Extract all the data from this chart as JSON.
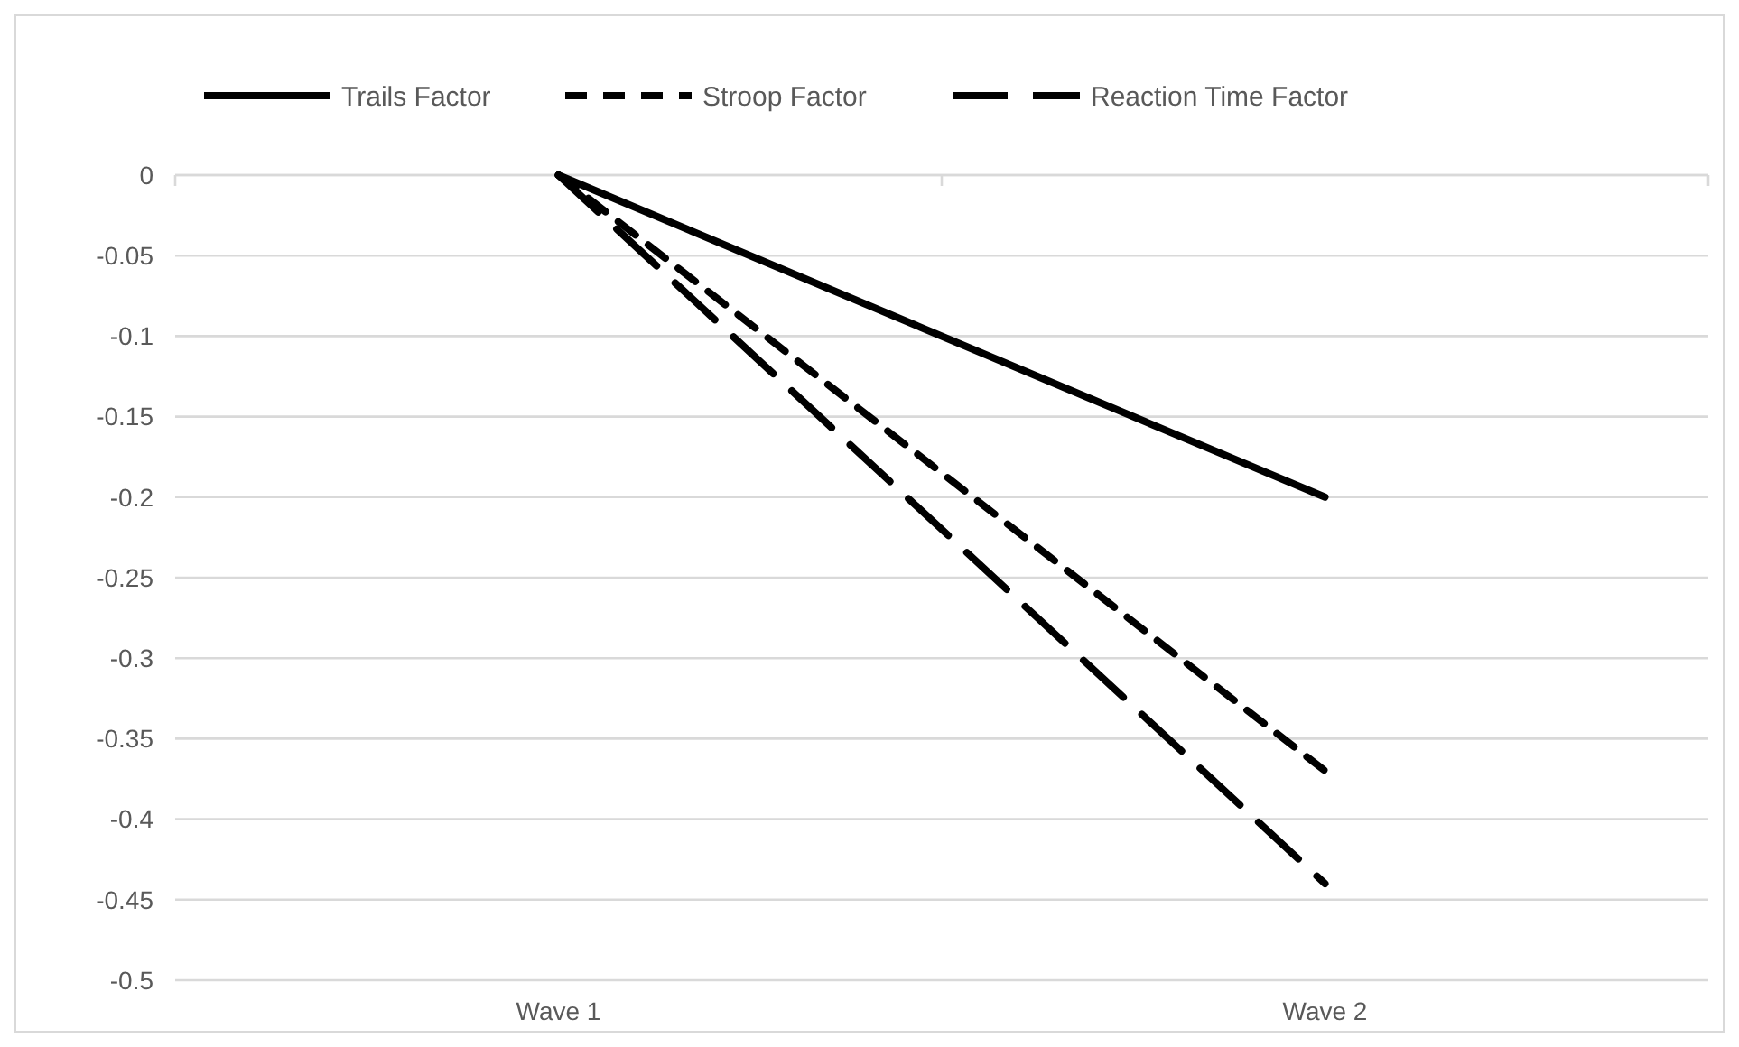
{
  "chart_data": {
    "type": "line",
    "categories": [
      "Wave 1",
      "Wave 2"
    ],
    "series": [
      {
        "name": "Trails Factor",
        "color": "#000000",
        "values": [
          0,
          -0.2
        ],
        "line_style": "solid"
      },
      {
        "name": "Stroop Factor",
        "color": "#000000",
        "values": [
          0,
          -0.37
        ],
        "line_style": "dashed"
      },
      {
        "name": "Reaction Time Factor",
        "color": "#000000",
        "values": [
          0,
          -0.44
        ],
        "line_style": "longdash"
      }
    ],
    "ylim": [
      -0.5,
      0
    ],
    "yticks": [
      0,
      -0.05,
      -0.1,
      -0.15,
      -0.2,
      -0.25,
      -0.3,
      -0.35,
      -0.4,
      -0.45,
      -0.5
    ],
    "grid": "y",
    "legend": "top",
    "marker": "none"
  }
}
